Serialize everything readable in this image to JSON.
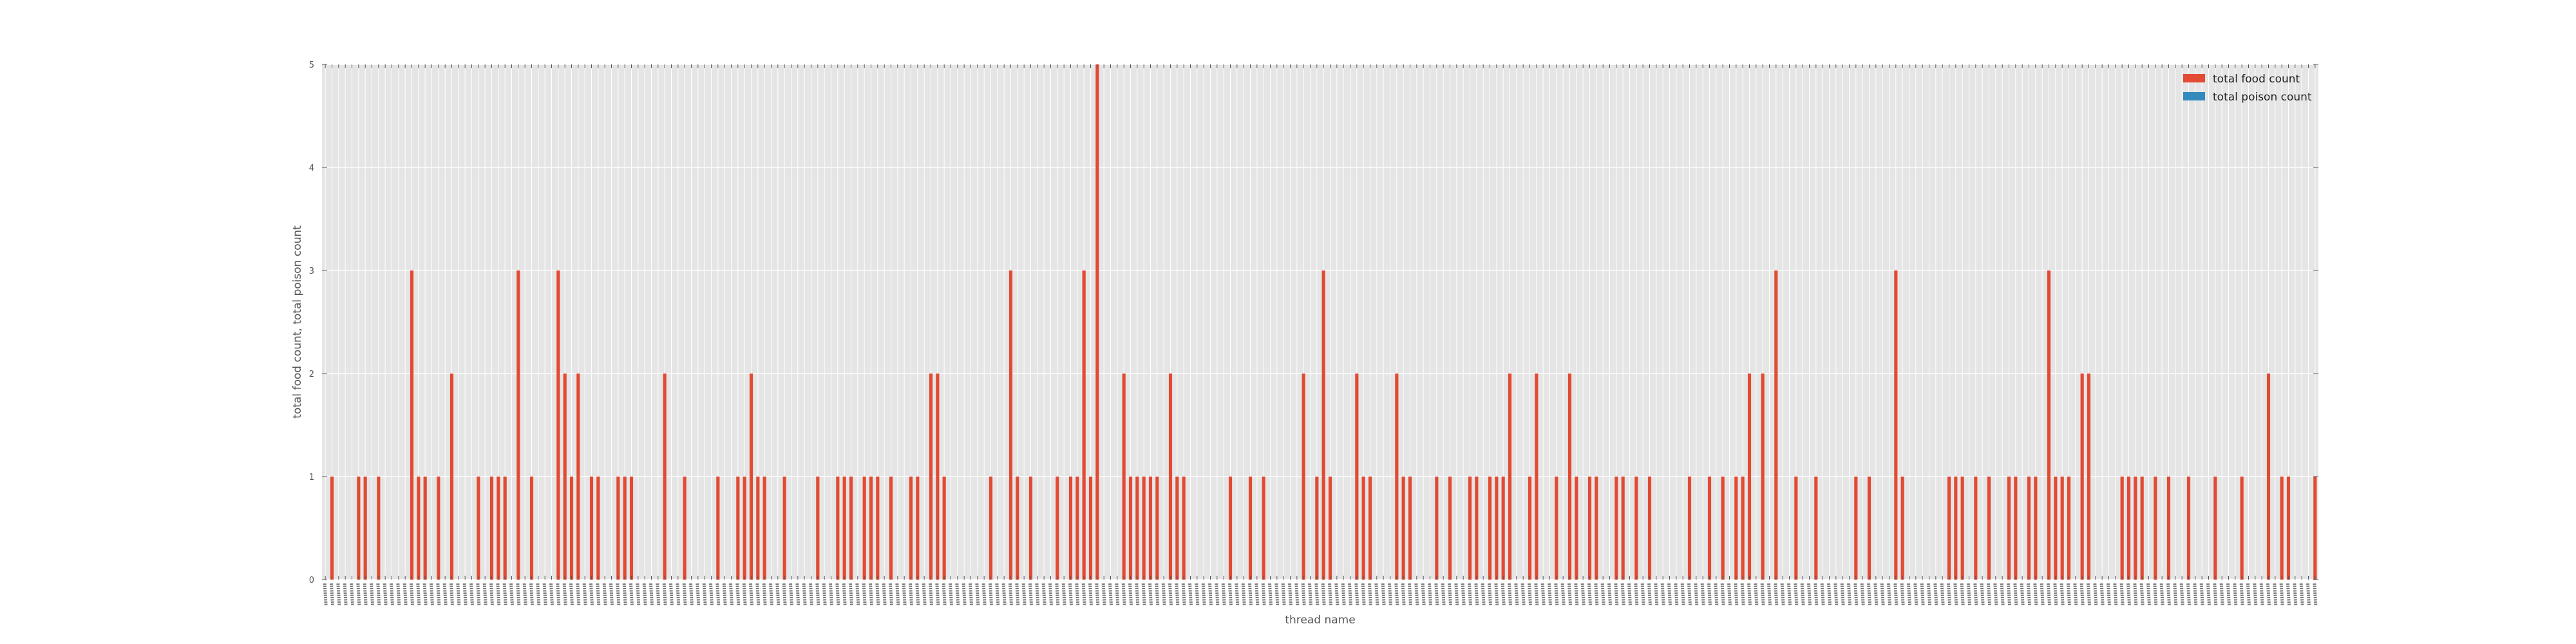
{
  "chart_data": {
    "type": "bar",
    "title": "",
    "xlabel": "thread name",
    "ylabel": "total food count, total poison count",
    "ylim": [
      0,
      5
    ],
    "yticks": [
      0,
      1,
      2,
      3,
      4,
      5
    ],
    "grid": true,
    "legend_position": "top-right",
    "colors": {
      "total food count": "#E24A33",
      "total poison count": "#348ABD",
      "background": "#E5E5E5",
      "grid": "#FFFFFF"
    },
    "category_count": 300,
    "series": [
      {
        "name": "total food count",
        "nonzero": [
          [
            1,
            1
          ],
          [
            5,
            1
          ],
          [
            6,
            1
          ],
          [
            8,
            1
          ],
          [
            13,
            3
          ],
          [
            14,
            1
          ],
          [
            15,
            1
          ],
          [
            17,
            1
          ],
          [
            19,
            2
          ],
          [
            23,
            1
          ],
          [
            25,
            1
          ],
          [
            26,
            1
          ],
          [
            27,
            1
          ],
          [
            29,
            3
          ],
          [
            31,
            1
          ],
          [
            35,
            3
          ],
          [
            36,
            2
          ],
          [
            37,
            1
          ],
          [
            38,
            2
          ],
          [
            40,
            1
          ],
          [
            41,
            1
          ],
          [
            44,
            1
          ],
          [
            45,
            1
          ],
          [
            46,
            1
          ],
          [
            51,
            2
          ],
          [
            54,
            1
          ],
          [
            59,
            1
          ],
          [
            62,
            1
          ],
          [
            63,
            1
          ],
          [
            64,
            2
          ],
          [
            65,
            1
          ],
          [
            66,
            1
          ],
          [
            69,
            1
          ],
          [
            74,
            1
          ],
          [
            77,
            1
          ],
          [
            78,
            1
          ],
          [
            79,
            1
          ],
          [
            81,
            1
          ],
          [
            82,
            1
          ],
          [
            83,
            1
          ],
          [
            85,
            1
          ],
          [
            88,
            1
          ],
          [
            89,
            1
          ],
          [
            91,
            2
          ],
          [
            92,
            2
          ],
          [
            93,
            1
          ],
          [
            100,
            1
          ],
          [
            103,
            3
          ],
          [
            104,
            1
          ],
          [
            106,
            1
          ],
          [
            110,
            1
          ],
          [
            112,
            1
          ],
          [
            113,
            1
          ],
          [
            114,
            3
          ],
          [
            115,
            1
          ],
          [
            116,
            5
          ],
          [
            120,
            2
          ],
          [
            121,
            1
          ],
          [
            122,
            1
          ],
          [
            123,
            1
          ],
          [
            124,
            1
          ],
          [
            125,
            1
          ],
          [
            127,
            2
          ],
          [
            128,
            1
          ],
          [
            129,
            1
          ],
          [
            136,
            1
          ],
          [
            139,
            1
          ],
          [
            141,
            1
          ],
          [
            147,
            2
          ],
          [
            149,
            1
          ],
          [
            150,
            3
          ],
          [
            151,
            1
          ],
          [
            155,
            2
          ],
          [
            156,
            1
          ],
          [
            157,
            1
          ],
          [
            161,
            2
          ],
          [
            162,
            1
          ],
          [
            163,
            1
          ],
          [
            167,
            1
          ],
          [
            169,
            1
          ],
          [
            172,
            1
          ],
          [
            173,
            1
          ],
          [
            175,
            1
          ],
          [
            176,
            1
          ],
          [
            177,
            1
          ],
          [
            178,
            2
          ],
          [
            181,
            1
          ],
          [
            182,
            2
          ],
          [
            185,
            1
          ],
          [
            187,
            2
          ],
          [
            188,
            1
          ],
          [
            190,
            1
          ],
          [
            191,
            1
          ],
          [
            194,
            1
          ],
          [
            195,
            1
          ],
          [
            197,
            1
          ],
          [
            199,
            1
          ],
          [
            205,
            1
          ],
          [
            208,
            1
          ],
          [
            210,
            1
          ],
          [
            212,
            1
          ],
          [
            213,
            1
          ],
          [
            214,
            2
          ],
          [
            216,
            2
          ],
          [
            218,
            3
          ],
          [
            221,
            1
          ],
          [
            224,
            1
          ],
          [
            230,
            1
          ],
          [
            232,
            1
          ],
          [
            236,
            3
          ],
          [
            237,
            1
          ],
          [
            244,
            1
          ],
          [
            245,
            1
          ],
          [
            246,
            1
          ],
          [
            248,
            1
          ],
          [
            250,
            1
          ],
          [
            253,
            1
          ],
          [
            254,
            1
          ],
          [
            256,
            1
          ],
          [
            257,
            1
          ],
          [
            259,
            3
          ],
          [
            260,
            1
          ],
          [
            261,
            1
          ],
          [
            262,
            1
          ],
          [
            264,
            2
          ],
          [
            265,
            2
          ],
          [
            270,
            1
          ],
          [
            271,
            1
          ],
          [
            272,
            1
          ],
          [
            273,
            1
          ],
          [
            275,
            1
          ],
          [
            277,
            1
          ],
          [
            280,
            1
          ],
          [
            284,
            1
          ],
          [
            288,
            1
          ],
          [
            292,
            2
          ],
          [
            294,
            1
          ],
          [
            295,
            1
          ],
          [
            299,
            1
          ]
        ]
      },
      {
        "name": "total poison count",
        "nonzero": []
      }
    ]
  }
}
